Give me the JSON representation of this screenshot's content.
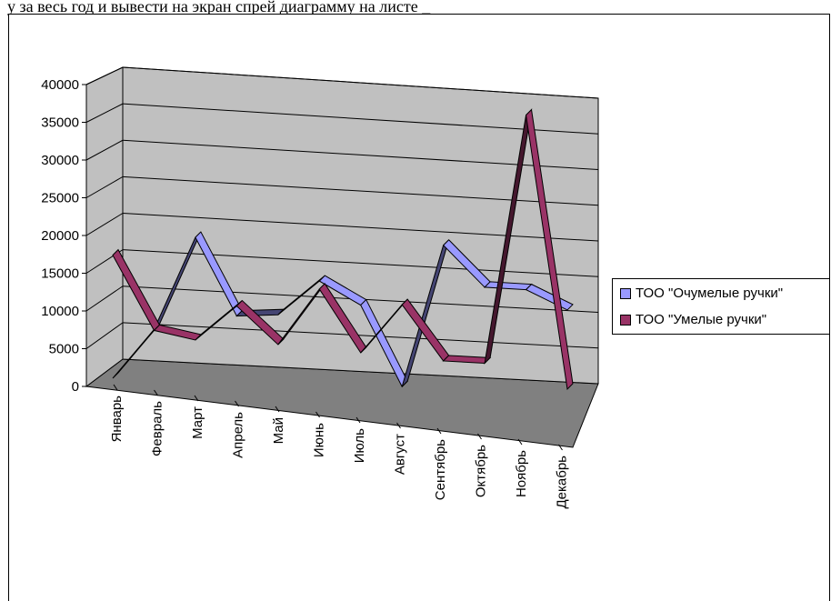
{
  "header": {
    "text": "у за весь год и вывести на экран спрей диаграмму на листе _"
  },
  "chart_data": {
    "type": "line",
    "style": "3d-ribbon",
    "categories": [
      "Январь",
      "Февраль",
      "Март",
      "Апрель",
      "Май",
      "Июнь",
      "Июль",
      "Август",
      "Сентябрь",
      "Октябрь",
      "Ноябрь",
      "Декабрь"
    ],
    "ylim": [
      0,
      40000
    ],
    "yticks": [
      "0",
      "5000",
      "10000",
      "15000",
      "20000",
      "25000",
      "30000",
      "35000",
      "40000"
    ],
    "grid": true,
    "legend_position": "right",
    "series": [
      {
        "name": "ТОО \"Очумелые ручки\"",
        "color": "#9999ff",
        "values": [
          0,
          7000,
          20000,
          9500,
          10000,
          15000,
          12000,
          1000,
          21000,
          15500,
          15500,
          13000
        ]
      },
      {
        "name": "ТОО \"Умелые ручки\"",
        "color": "#993366",
        "values": [
          15000,
          5000,
          4000,
          9000,
          4000,
          12000,
          3500,
          10500,
          3000,
          3000,
          38000,
          0
        ]
      }
    ],
    "colors": {
      "back_wall": "#c0c0c0",
      "floor": "#808080",
      "side_wall": "#c0c0c0"
    }
  }
}
